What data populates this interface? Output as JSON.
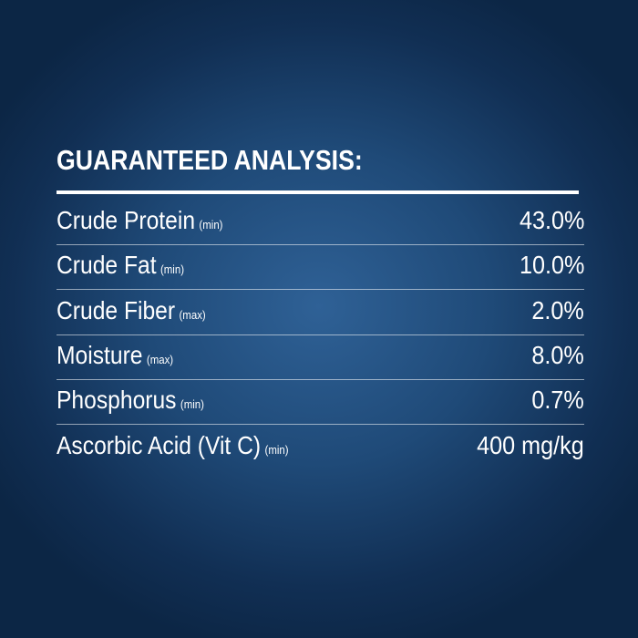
{
  "title": "GUARANTEED ANALYSIS:",
  "rows": [
    {
      "name": "Crude Protein",
      "qualifier": "(min)",
      "value": "43.0%"
    },
    {
      "name": "Crude Fat",
      "qualifier": "(min)",
      "value": "10.0%"
    },
    {
      "name": "Crude Fiber",
      "qualifier": "(max)",
      "value": "2.0%"
    },
    {
      "name": "Moisture",
      "qualifier": "(max)",
      "value": "8.0%"
    },
    {
      "name": "Phosphorus",
      "qualifier": "(min)",
      "value": "0.7%"
    },
    {
      "name": "Ascorbic Acid (Vit C)",
      "qualifier": "(min)",
      "value": "400 mg/kg"
    }
  ]
}
